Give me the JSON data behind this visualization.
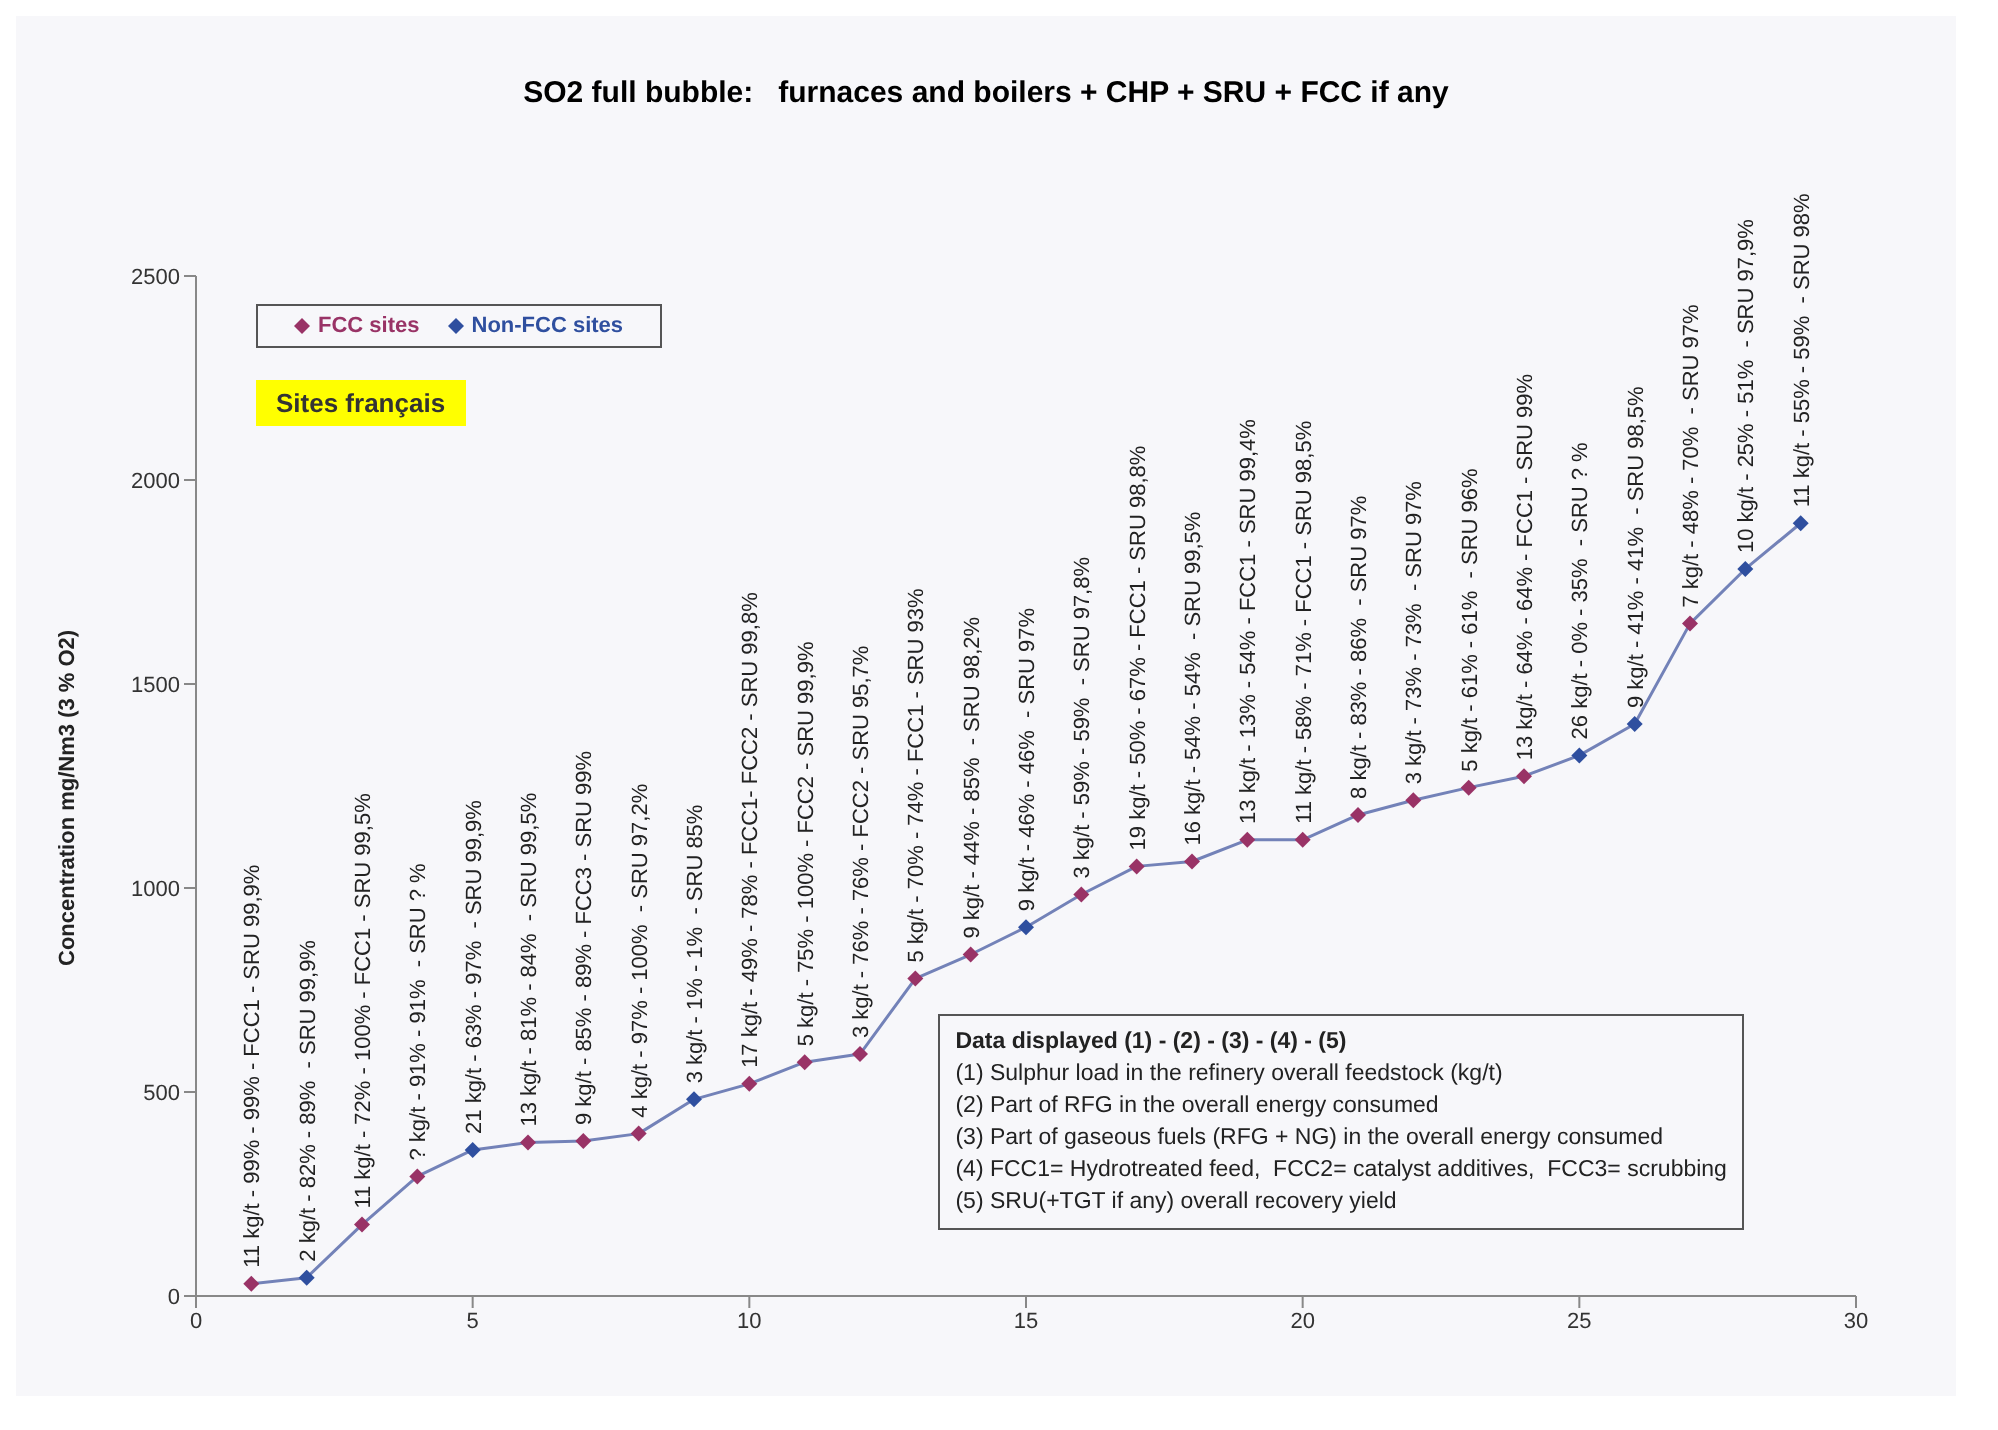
{
  "chart_data": {
    "type": "line",
    "title": "SO2 full bubble:   furnaces and boilers + CHP + SRU + FCC if any",
    "ylabel": "Concentration mg/Nm3 (3 % O2)",
    "x": [
      1,
      2,
      3,
      4,
      5,
      6,
      7,
      8,
      9,
      10,
      11,
      12,
      13,
      14,
      15,
      16,
      17,
      18,
      19,
      20,
      21,
      22,
      23,
      24,
      25,
      26,
      27,
      28,
      29
    ],
    "series": [
      {
        "color": "#7382b8",
        "marker": "none",
        "values": [
          30,
          45,
          175,
          293,
          358,
          376,
          380,
          398,
          482,
          520,
          573,
          593,
          778,
          837,
          904,
          984,
          1053,
          1065,
          1118,
          1118,
          1179,
          1215,
          1246,
          1274,
          1325,
          1402,
          1648,
          1782,
          1894
        ]
      },
      {
        "type": "scatter",
        "name": "FCC sites",
        "color": "#993366",
        "marker": "diamond",
        "values": [
          30,
          null,
          175,
          293,
          null,
          376,
          380,
          398,
          null,
          520,
          573,
          593,
          778,
          837,
          null,
          984,
          1053,
          1065,
          1118,
          1118,
          1179,
          1215,
          1246,
          1274,
          null,
          null,
          1648,
          null,
          null
        ]
      },
      {
        "type": "scatter",
        "name": "Non-FCC sites",
        "color": "#2f4f9f",
        "marker": "diamond",
        "values": [
          null,
          45,
          null,
          null,
          358,
          null,
          null,
          null,
          482,
          null,
          null,
          null,
          null,
          null,
          904,
          null,
          null,
          null,
          null,
          null,
          null,
          null,
          null,
          null,
          1325,
          1402,
          null,
          1782,
          1894
        ]
      }
    ],
    "xlim": [
      0,
      30
    ],
    "xticks": [
      0,
      5,
      10,
      15,
      20,
      25,
      30
    ],
    "ylim": [
      0,
      2500
    ],
    "yticks": [
      0,
      500,
      1000,
      1500,
      2000,
      2500
    ],
    "legend": "top left",
    "annotations": [
      "Sites français",
      "Data displayed (1) - (2) - (3) - (4) - (5)",
      "(1) Sulphur load in the refinery overall feedstock (kg/t)",
      "(2) Part of RFG in the overall energy consumed",
      "(3) Part of gaseous fuels (RFG + NG) in the overall energy consumed",
      "(4) FCC1= Hydrotreated feed,  FCC2= catalyst additives,  FCC3= scrubbing",
      "(5) SRU(+TGT if any) overall recovery yield",
      {
        "text": "11 kg/t - 99% - 99% - FCC1 - SRU 99,9%",
        "x": 1,
        "y": 30
      },
      {
        "text": "2 kg/t - 82% - 89%  - SRU 99,9%",
        "x": 2,
        "y": 45
      },
      {
        "text": "11 kg/t - 72% - 100% - FCC1 - SRU 99,5%",
        "x": 3,
        "y": 175
      },
      {
        "text": "? kg/t - 91% - 91%  - SRU ? %",
        "x": 4,
        "y": 293
      },
      {
        "text": "21 kg/t - 63% - 97%  - SRU 99,9%",
        "x": 5,
        "y": 358
      },
      {
        "text": "13 kg/t - 81% - 84%  - SRU 99,5%",
        "x": 6,
        "y": 376
      },
      {
        "text": "9 kg/t - 85% - 89% - FCC3 - SRU 99%",
        "x": 7,
        "y": 380
      },
      {
        "text": "4 kg/t - 97% - 100%  - SRU 97,2%",
        "x": 8,
        "y": 398
      },
      {
        "text": "3 kg/t - 1% - 1%  - SRU 85%",
        "x": 9,
        "y": 482
      },
      {
        "text": "17 kg/t - 49% - 78% - FCC1- FCC2 - SRU 99,8%",
        "x": 10,
        "y": 520
      },
      {
        "text": "5 kg/t - 75% - 100% - FCC2 - SRU 99,9%",
        "x": 11,
        "y": 573
      },
      {
        "text": "3 kg/t - 76% - 76% - FCC2 - SRU 95,7%",
        "x": 12,
        "y": 593
      },
      {
        "text": "5 kg/t - 70% - 74% - FCC1 - SRU 93%",
        "x": 13,
        "y": 778
      },
      {
        "text": "9 kg/t - 44% - 85%  - SRU 98,2%",
        "x": 14,
        "y": 837
      },
      {
        "text": "9 kg/t - 46% - 46%  - SRU 97%",
        "x": 15,
        "y": 904
      },
      {
        "text": "3 kg/t - 59% - 59%  - SRU 97,8%",
        "x": 16,
        "y": 984
      },
      {
        "text": "19 kg/t - 50% - 67% - FCC1 - SRU 98,8%",
        "x": 17,
        "y": 1053
      },
      {
        "text": "16 kg/t - 54% - 54%  - SRU 99,5%",
        "x": 18,
        "y": 1065
      },
      {
        "text": "13 kg/t - 13% - 54% - FCC1 - SRU 99,4%",
        "x": 19,
        "y": 1118
      },
      {
        "text": "11 kg/t - 58% - 71% - FCC1 - SRU 98,5%",
        "x": 20,
        "y": 1118
      },
      {
        "text": "8 kg/t - 83% - 86%  - SRU 97%",
        "x": 21,
        "y": 1179
      },
      {
        "text": "3 kg/t - 73% - 73%  - SRU 97%",
        "x": 22,
        "y": 1215
      },
      {
        "text": "5 kg/t - 61% - 61%  - SRU 96%",
        "x": 23,
        "y": 1246
      },
      {
        "text": "13 kg/t - 64% - 64% - FCC1 - SRU 99%",
        "x": 24,
        "y": 1274
      },
      {
        "text": "26 kg/t - 0% - 35%  - SRU ? %",
        "x": 25,
        "y": 1325
      },
      {
        "text": "9 kg/t - 41% - 41%  - SRU 98,5%",
        "x": 26,
        "y": 1402
      },
      {
        "text": "7 kg/t - 48% - 70%  - SRU 97%",
        "x": 27,
        "y": 1648
      },
      {
        "text": "10 kg/t - 25% - 51%  - SRU 97,9%",
        "x": 28,
        "y": 1782
      },
      {
        "text": "11 kg/t - 55% - 59%  - SRU 98%",
        "x": 29,
        "y": 1894
      }
    ]
  }
}
